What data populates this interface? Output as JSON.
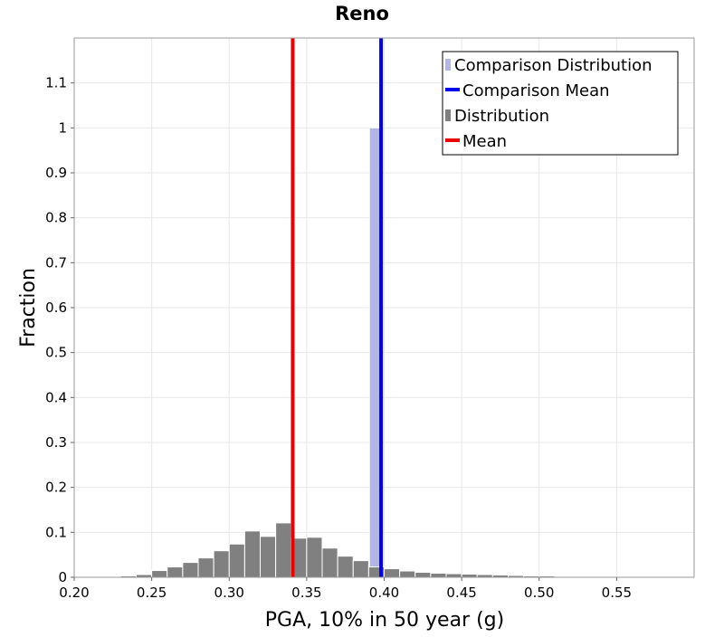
{
  "chart_data": {
    "type": "bar",
    "title": "Reno",
    "xlabel": "PGA, 10% in 50 year (g)",
    "ylabel": "Fraction",
    "xlim": [
      0.2,
      0.6
    ],
    "ylim": [
      0,
      1.2
    ],
    "xticks": [
      "0.20",
      "0.25",
      "0.30",
      "0.35",
      "0.40",
      "0.45",
      "0.50",
      "0.55"
    ],
    "xtick_values": [
      0.2,
      0.25,
      0.3,
      0.35,
      0.4,
      0.45,
      0.5,
      0.55
    ],
    "yticks": [
      "0",
      "0.1",
      "0.2",
      "0.3",
      "0.4",
      "0.5",
      "0.6",
      "0.7",
      "0.8",
      "0.9",
      "1",
      "1.1"
    ],
    "ytick_values": [
      0,
      0.1,
      0.2,
      0.3,
      0.4,
      0.5,
      0.6,
      0.7,
      0.8,
      0.9,
      1.0,
      1.1
    ],
    "grid": true,
    "legend_position": "top-right",
    "series": [
      {
        "name": "Comparison Distribution",
        "kind": "histogram",
        "color": "#b4b4e6",
        "bin_width": 0.008,
        "x": [
          0.3945
        ],
        "values": [
          1.0
        ]
      },
      {
        "name": "Comparison Mean",
        "kind": "vline",
        "color": "#0000ee",
        "x": 0.398
      },
      {
        "name": "Distribution",
        "kind": "histogram",
        "color": "#808080",
        "bin_width": 0.01,
        "x": [
          0.215,
          0.225,
          0.235,
          0.245,
          0.255,
          0.265,
          0.275,
          0.285,
          0.295,
          0.305,
          0.315,
          0.325,
          0.335,
          0.345,
          0.355,
          0.365,
          0.375,
          0.385,
          0.395,
          0.405,
          0.415,
          0.425,
          0.435,
          0.445,
          0.455,
          0.465,
          0.475,
          0.485,
          0.495,
          0.505,
          0.515,
          0.525,
          0.535,
          0.545,
          0.555,
          0.565
        ],
        "values": [
          0.001,
          0.002,
          0.003,
          0.006,
          0.015,
          0.023,
          0.033,
          0.043,
          0.059,
          0.074,
          0.103,
          0.091,
          0.121,
          0.087,
          0.089,
          0.065,
          0.047,
          0.037,
          0.023,
          0.019,
          0.014,
          0.011,
          0.009,
          0.008,
          0.007,
          0.006,
          0.005,
          0.004,
          0.003,
          0.003,
          0.002,
          0.002,
          0.002,
          0.001,
          0.001,
          0.001
        ]
      },
      {
        "name": "Mean",
        "kind": "vline",
        "color": "#ee0000",
        "x": 0.341
      }
    ]
  }
}
